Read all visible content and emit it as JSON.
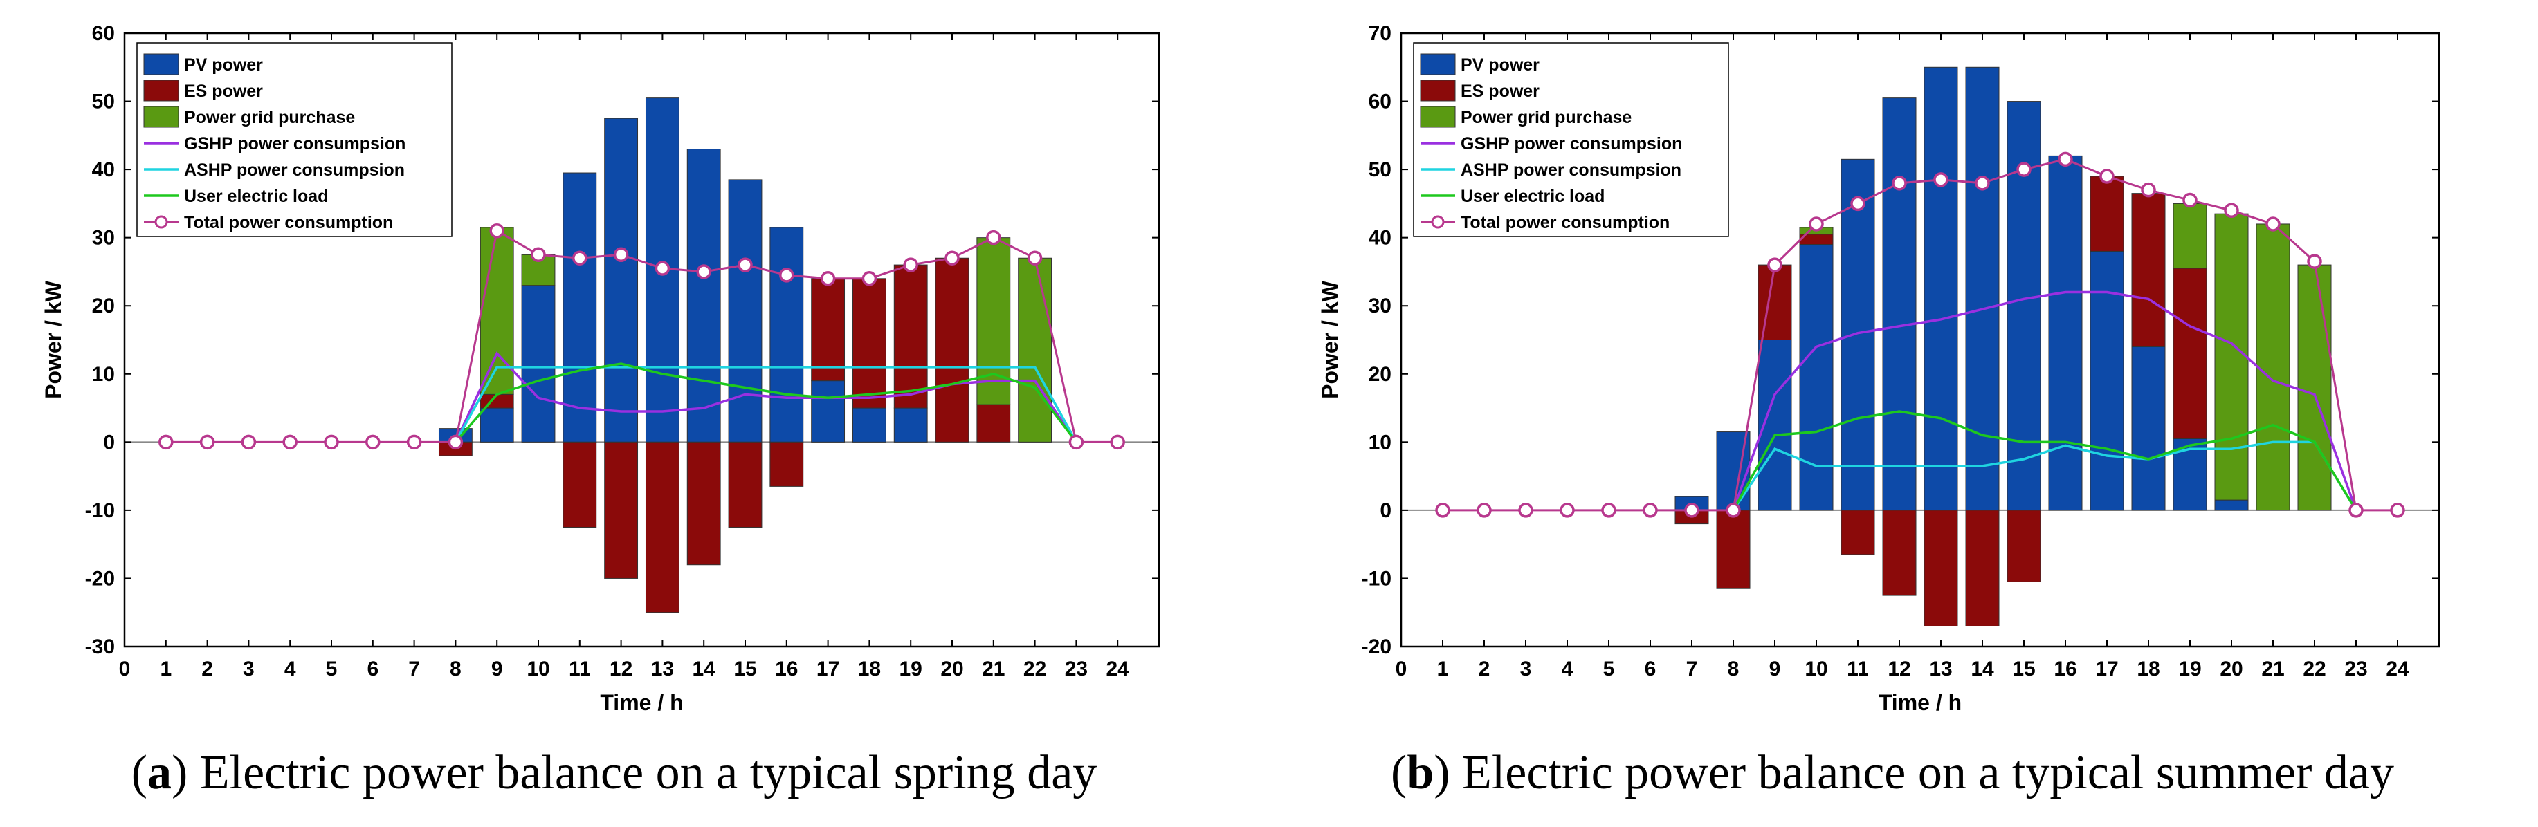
{
  "chart_data": [
    {
      "type": "bar",
      "caption": {
        "letter": "a",
        "text": "Electric power balance on a typical spring day"
      },
      "xlabel": "Time  / h",
      "ylabel": "Power / kW",
      "xlim": [
        0,
        25
      ],
      "ylim": [
        -30,
        60
      ],
      "xticks": [
        0,
        1,
        2,
        3,
        4,
        5,
        6,
        7,
        8,
        9,
        10,
        11,
        12,
        13,
        14,
        15,
        16,
        17,
        18,
        19,
        20,
        21,
        22,
        23,
        24
      ],
      "yticks": [
        -30,
        -20,
        -10,
        0,
        10,
        20,
        30,
        40,
        50,
        60
      ],
      "hours": [
        1,
        2,
        3,
        4,
        5,
        6,
        7,
        8,
        9,
        10,
        11,
        12,
        13,
        14,
        15,
        16,
        17,
        18,
        19,
        20,
        21,
        22,
        23,
        24
      ],
      "bar_series": [
        {
          "name": "PV power",
          "color": "#0d4aa8",
          "values": [
            0,
            0,
            0,
            0,
            0,
            0,
            0,
            2,
            5,
            23,
            39.5,
            47.5,
            50.5,
            43,
            38.5,
            31.5,
            9,
            5,
            5,
            0,
            0,
            0,
            0,
            0
          ]
        },
        {
          "name": "ES power",
          "color": "#8b0a0a",
          "values": [
            0,
            0,
            0,
            0,
            0,
            0,
            0,
            -2,
            2,
            0,
            -12.5,
            -20,
            -25,
            -18,
            -12.5,
            -6.5,
            15,
            19,
            21,
            27,
            5.5,
            0,
            0,
            0
          ]
        },
        {
          "name": "Power grid purchase",
          "color": "#5a9a12",
          "values": [
            0,
            0,
            0,
            0,
            0,
            0,
            0,
            0,
            24.5,
            4.5,
            0,
            0,
            0,
            0,
            0,
            0,
            0,
            0,
            0,
            0,
            24.5,
            27,
            0,
            0
          ]
        }
      ],
      "line_series": [
        {
          "name": "GSHP power consumpsion",
          "color": "#9a30e0",
          "values": [
            0,
            0,
            0,
            0,
            0,
            0,
            0,
            0,
            13,
            6.5,
            5,
            4.5,
            4.5,
            5,
            7,
            6.5,
            6.5,
            6.5,
            7,
            8.5,
            9,
            9,
            0,
            0
          ]
        },
        {
          "name": "ASHP power consumpsion",
          "color": "#1fd4e0",
          "values": [
            0,
            0,
            0,
            0,
            0,
            0,
            0,
            0,
            11,
            11,
            11,
            11,
            11,
            11,
            11,
            11,
            11,
            11,
            11,
            11,
            11,
            11,
            0,
            0
          ]
        },
        {
          "name": "User electric load",
          "color": "#1ec81e",
          "values": [
            0,
            0,
            0,
            0,
            0,
            0,
            0,
            0,
            7,
            9,
            10.5,
            11.5,
            10,
            9,
            8,
            7,
            6.5,
            7,
            7.5,
            8.5,
            10,
            8,
            0,
            0
          ]
        },
        {
          "name": "Total power consumption",
          "color": "#b8388e",
          "markers": true,
          "values": [
            0,
            0,
            0,
            0,
            0,
            0,
            0,
            0,
            31,
            27.5,
            27,
            27.5,
            25.5,
            25,
            26,
            24.5,
            24,
            24,
            26,
            27,
            30,
            27,
            0,
            0
          ]
        }
      ],
      "legend_position": "top-left"
    },
    {
      "type": "bar",
      "caption": {
        "letter": "b",
        "text": "Electric power balance on a typical summer day"
      },
      "xlabel": "Time  / h",
      "ylabel": "Power / kW",
      "xlim": [
        0,
        25
      ],
      "ylim": [
        -20,
        70
      ],
      "xticks": [
        0,
        1,
        2,
        3,
        4,
        5,
        6,
        7,
        8,
        9,
        10,
        11,
        12,
        13,
        14,
        15,
        16,
        17,
        18,
        19,
        20,
        21,
        22,
        23,
        24
      ],
      "yticks": [
        -20,
        -10,
        0,
        10,
        20,
        30,
        40,
        50,
        60,
        70
      ],
      "hours": [
        1,
        2,
        3,
        4,
        5,
        6,
        7,
        8,
        9,
        10,
        11,
        12,
        13,
        14,
        15,
        16,
        17,
        18,
        19,
        20,
        21,
        22,
        23,
        24
      ],
      "bar_series": [
        {
          "name": "PV power",
          "color": "#0d4aa8",
          "values": [
            0,
            0,
            0,
            0,
            0,
            0,
            2,
            11.5,
            25,
            39,
            51.5,
            60.5,
            65,
            65,
            60,
            52,
            38,
            24,
            10.5,
            1.5,
            0,
            0,
            0,
            0
          ]
        },
        {
          "name": "ES power",
          "color": "#8b0a0a",
          "values": [
            0,
            0,
            0,
            0,
            0,
            0,
            -2,
            -11.5,
            11,
            1.5,
            -6.5,
            -12.5,
            -17,
            -17,
            -10.5,
            0,
            11,
            22.5,
            25,
            0,
            0,
            0,
            0,
            0
          ]
        },
        {
          "name": "Power grid purchase",
          "color": "#5a9a12",
          "values": [
            0,
            0,
            0,
            0,
            0,
            0,
            0,
            0,
            0,
            1,
            0,
            0,
            0,
            0,
            0,
            0,
            0,
            0,
            9.5,
            42,
            42,
            36,
            0,
            0
          ]
        }
      ],
      "line_series": [
        {
          "name": "GSHP power consumpsion",
          "color": "#9a30e0",
          "values": [
            0,
            0,
            0,
            0,
            0,
            0,
            0,
            0,
            17,
            24,
            26,
            27,
            28,
            29.5,
            31,
            32,
            32,
            31,
            27,
            24.5,
            19,
            17,
            0,
            0
          ]
        },
        {
          "name": "ASHP power consumpsion",
          "color": "#1fd4e0",
          "values": [
            0,
            0,
            0,
            0,
            0,
            0,
            0,
            0,
            9,
            6.5,
            6.5,
            6.5,
            6.5,
            6.5,
            7.5,
            9.5,
            8,
            7.5,
            9,
            9,
            10,
            10,
            0,
            0
          ]
        },
        {
          "name": "User electric load",
          "color": "#1ec81e",
          "values": [
            0,
            0,
            0,
            0,
            0,
            0,
            0,
            0,
            11,
            11.5,
            13.5,
            14.5,
            13.5,
            11,
            10,
            10,
            9,
            7.5,
            9.5,
            10.5,
            12.5,
            10,
            0,
            0
          ]
        },
        {
          "name": "Total power consumption",
          "color": "#b8388e",
          "markers": true,
          "values": [
            0,
            0,
            0,
            0,
            0,
            0,
            0,
            0,
            36,
            42,
            45,
            48,
            48.5,
            48,
            50,
            51.5,
            49,
            47,
            45.5,
            44,
            42,
            36.5,
            0,
            0
          ]
        }
      ],
      "legend_position": "top-left"
    }
  ]
}
